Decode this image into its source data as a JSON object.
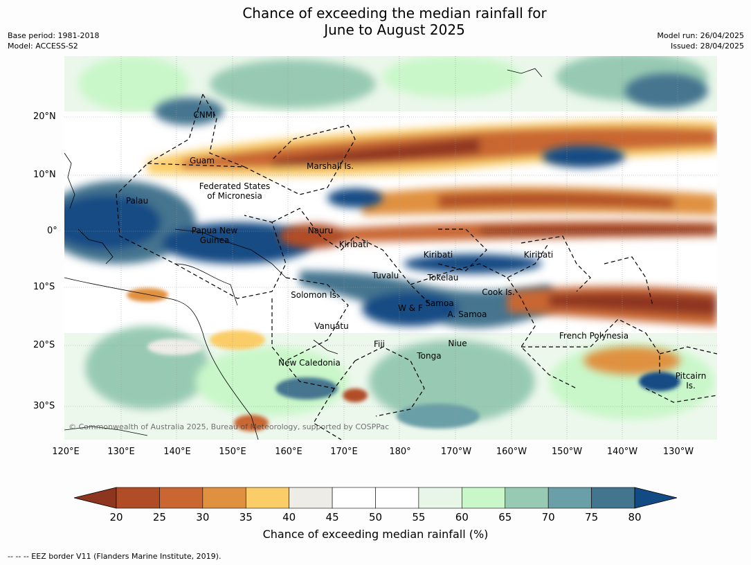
{
  "title_line1": "Chance of exceeding the median rainfall for",
  "title_line2": "June to August 2025",
  "meta_left": {
    "base_period": "Base period: 1981-2018",
    "model": "Model: ACCESS-S2"
  },
  "meta_right": {
    "model_run": "Model run: 26/04/2025",
    "issued": "Issued: 28/04/2025"
  },
  "lat_labels": [
    "20°N",
    "10°N",
    "0°",
    "10°S",
    "20°S",
    "30°S"
  ],
  "lon_labels": [
    "120°E",
    "130°E",
    "140°E",
    "150°E",
    "160°E",
    "170°E",
    "180°",
    "170°W",
    "160°W",
    "150°W",
    "140°W",
    "130°W"
  ],
  "places": {
    "cnmi": "CNMI",
    "guam": "Guam",
    "marshall": "Marshall Is.",
    "fsm_1": "Federated States",
    "fsm_2": "of Micronesia",
    "palau": "Palau",
    "png_1": "Papua New",
    "png_2": "Guinea",
    "nauru": "Nauru",
    "kiribati_w": "Kiribati",
    "kiribati_c": "Kiribati",
    "kiribati_e": "Kiribati",
    "tuvalu": "Tuvalu",
    "tokelau": "Tokelau",
    "cook": "Cook Is.",
    "solomon": "Solomon Is.",
    "wf": "W & F",
    "samoa": "Samoa",
    "asamoa": "A. Samoa",
    "vanuatu": "Vanuatu",
    "fiji": "Fiji",
    "niue": "Niue",
    "tonga": "Tonga",
    "frenchpoly": "French Polynesia",
    "newcal": "New Caledonia",
    "pitcairn_1": "Pitcairn",
    "pitcairn_2": "Is."
  },
  "copyright": "© Commonwealth of Australia 2025, Bureau of Meteorology, supported by COSPPac",
  "colorbar": {
    "ticks": [
      "20",
      "25",
      "30",
      "35",
      "40",
      "45",
      "50",
      "55",
      "60",
      "65",
      "70",
      "75",
      "80"
    ],
    "colors": [
      "#8e3520",
      "#b04d26",
      "#c96631",
      "#e09140",
      "#fbcd69",
      "#eeece6",
      "#ffffff",
      "#ffffff",
      "#e8f6e8",
      "#c9f7c9",
      "#98cab3",
      "#6a9fa7",
      "#44758f",
      "#124b84"
    ],
    "label": "Chance of exceeding median rainfall (%)"
  },
  "footnote": "-- -- -- EEZ border V11 (Flanders Marine Institute, 2019)."
}
